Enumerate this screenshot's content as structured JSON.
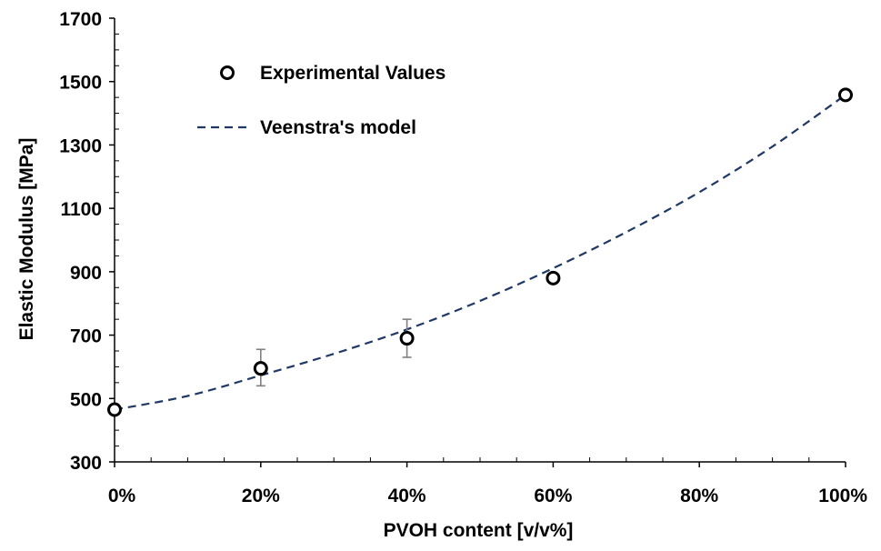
{
  "chart_data": {
    "type": "scatter",
    "title": "",
    "xlabel": "PVOH content [v/v%]",
    "ylabel": "Elastic Modulus [MPa]",
    "xlim": [
      0,
      100
    ],
    "ylim": [
      300,
      1700
    ],
    "x_ticks": [
      0,
      20,
      40,
      60,
      80,
      100
    ],
    "x_tick_labels": [
      "0%",
      "20%",
      "40%",
      "60%",
      "80%",
      "100%"
    ],
    "y_ticks": [
      300,
      500,
      700,
      900,
      1100,
      1300,
      1500,
      1700
    ],
    "y_tick_labels": [
      "300",
      "500",
      "700",
      "900",
      "1100",
      "1300",
      "1500",
      "1700"
    ],
    "grid": false,
    "legend_position": "top-left",
    "series": [
      {
        "name": "Experimental Values",
        "kind": "scatter",
        "marker": "open-circle",
        "color": "#000000",
        "x": [
          0,
          20,
          40,
          60,
          100
        ],
        "y": [
          465,
          595,
          690,
          880,
          1458
        ],
        "error_low": [
          null,
          540,
          630,
          null,
          null
        ],
        "error_high": [
          null,
          655,
          750,
          null,
          null
        ]
      },
      {
        "name": "Veenstra's model",
        "kind": "line",
        "style": "dashed",
        "color": "#1f3864",
        "x": [
          0,
          10,
          20,
          30,
          40,
          50,
          60,
          70,
          80,
          90,
          100
        ],
        "y": [
          465,
          508,
          573,
          641,
          718,
          808,
          911,
          1025,
          1151,
          1295,
          1458
        ]
      }
    ]
  }
}
